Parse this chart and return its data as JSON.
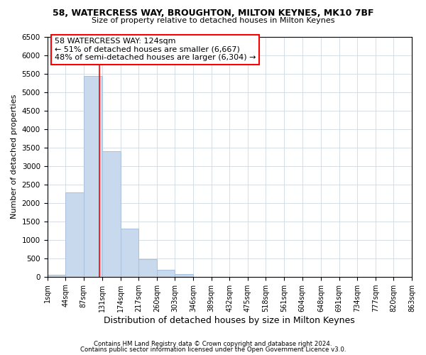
{
  "title1": "58, WATERCRESS WAY, BROUGHTON, MILTON KEYNES, MK10 7BF",
  "title2": "Size of property relative to detached houses in Milton Keynes",
  "xlabel": "Distribution of detached houses by size in Milton Keynes",
  "ylabel": "Number of detached properties",
  "bar_color": "#c8d9ee",
  "bar_edge_color": "#a8c0dc",
  "vline_color": "red",
  "vline_x": 124,
  "bin_edges": [
    1,
    44,
    87,
    131,
    174,
    217,
    260,
    303,
    346,
    389,
    432,
    475,
    518,
    561,
    604,
    648,
    691,
    734,
    777,
    820,
    863
  ],
  "bar_heights": [
    50,
    2280,
    5430,
    3390,
    1310,
    480,
    185,
    80,
    0,
    0,
    0,
    0,
    0,
    0,
    0,
    0,
    0,
    0,
    0,
    0
  ],
  "ylim": [
    0,
    6500
  ],
  "yticks": [
    0,
    500,
    1000,
    1500,
    2000,
    2500,
    3000,
    3500,
    4000,
    4500,
    5000,
    5500,
    6000,
    6500
  ],
  "annotation_text": "58 WATERCRESS WAY: 124sqm\n← 51% of detached houses are smaller (6,667)\n48% of semi-detached houses are larger (6,304) →",
  "footer1": "Contains HM Land Registry data © Crown copyright and database right 2024.",
  "footer2": "Contains public sector information licensed under the Open Government Licence v3.0.",
  "background_color": "#ffffff",
  "grid_color": "#d0d8e0"
}
